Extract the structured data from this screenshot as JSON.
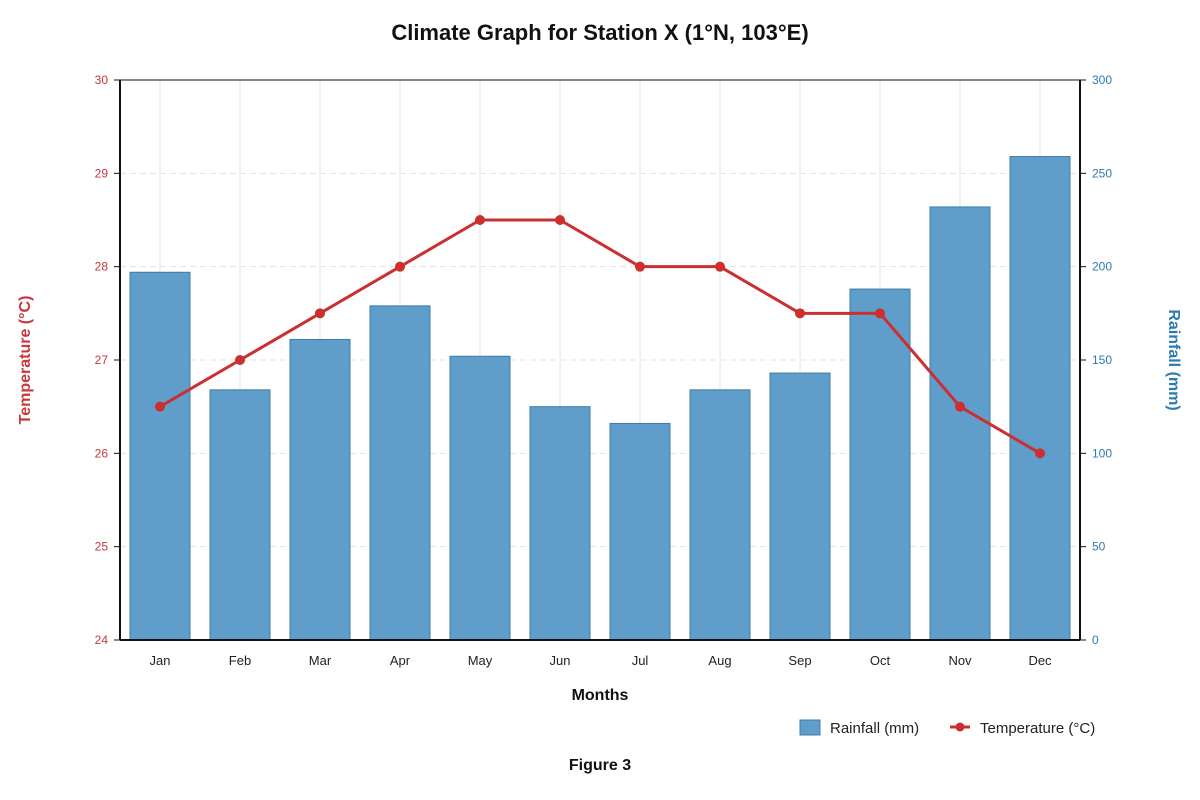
{
  "figure_caption": "Figure 3",
  "colors": {
    "bar_fill": "#5f9dca",
    "bar_stroke": "#3c7da8",
    "line": "#cc2f2f",
    "temp_axis": "#c9373a",
    "rain_axis": "#2e7bb0",
    "grid": "#e3e3e3",
    "axis": "#111111"
  },
  "chart_data": {
    "type": "bar+line",
    "title": "Climate Graph for Station X (1°N, 103°E)",
    "xlabel": "Months",
    "ylabel_left": "Temperature (°C)",
    "ylabel_right": "Rainfall (mm)",
    "categories": [
      "Jan",
      "Feb",
      "Mar",
      "Apr",
      "May",
      "Jun",
      "Jul",
      "Aug",
      "Sep",
      "Oct",
      "Nov",
      "Dec"
    ],
    "series": [
      {
        "name": "Rainfall (mm)",
        "type": "bar",
        "axis": "right",
        "values": [
          197,
          134,
          161,
          179,
          152,
          125,
          116,
          134,
          143,
          188,
          232,
          259
        ]
      },
      {
        "name": "Temperature (°C)",
        "type": "line",
        "axis": "left",
        "values": [
          26.5,
          27.0,
          27.5,
          28.0,
          28.5,
          28.5,
          28.0,
          28.0,
          27.5,
          27.5,
          26.5,
          26.0
        ]
      }
    ],
    "ylim_left": [
      24,
      30
    ],
    "yticks_left": [
      "24",
      "25",
      "26",
      "27",
      "28",
      "29",
      "30"
    ],
    "ylim_right": [
      0,
      300
    ],
    "yticks_right": [
      "0",
      "50",
      "100",
      "150",
      "200",
      "250",
      "300"
    ],
    "grid": true,
    "legend_position": "bottom-right"
  }
}
